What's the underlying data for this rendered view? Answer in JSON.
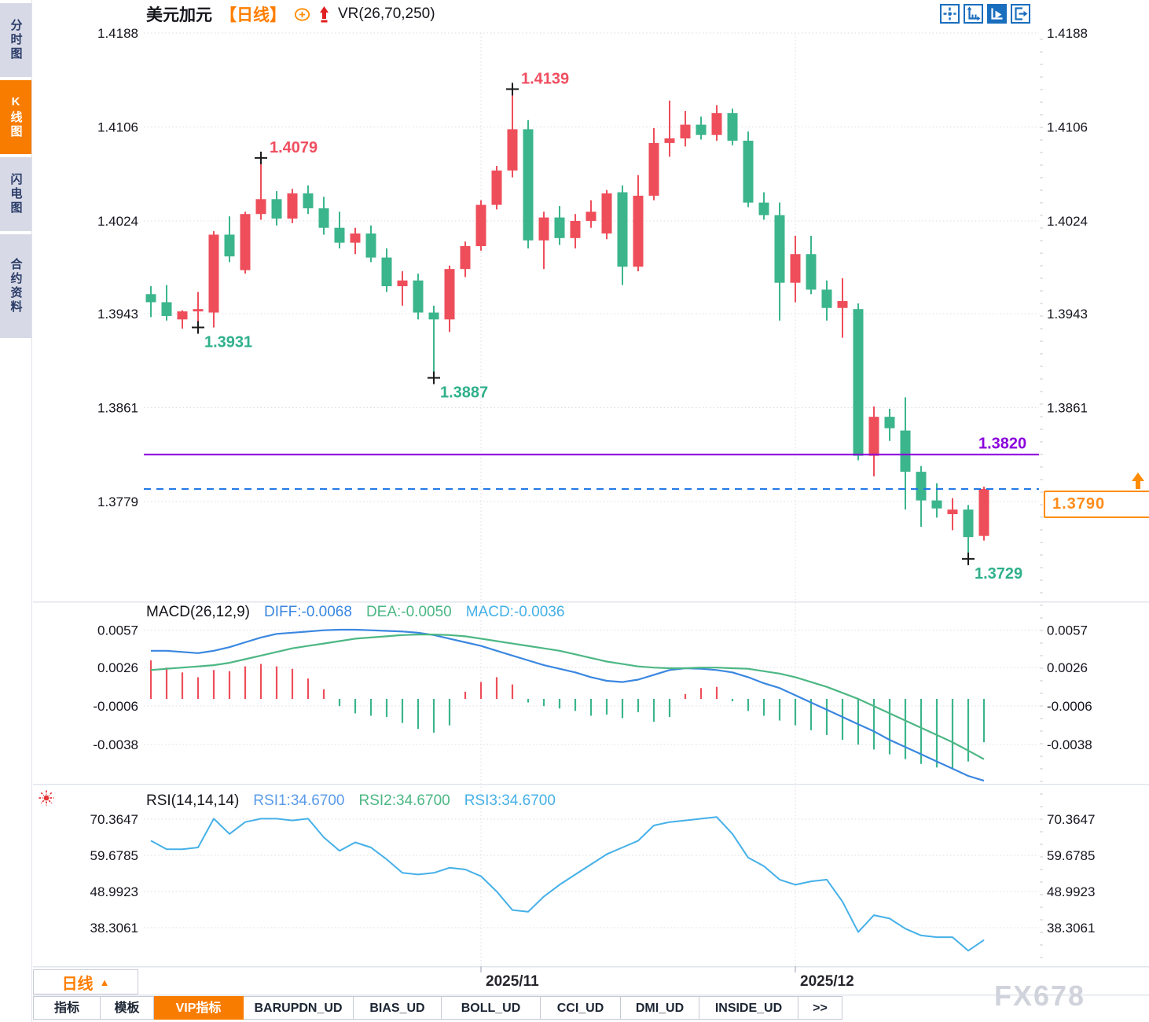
{
  "window": {
    "watermark": "FX678"
  },
  "sidebar": {
    "items": [
      {
        "label": "分时图",
        "active": false
      },
      {
        "label": "K线图",
        "active": true
      },
      {
        "label": "闪电图",
        "active": false
      },
      {
        "label": "合约资料",
        "active": false
      }
    ]
  },
  "header": {
    "symbol": "美元加元",
    "period_tag": "【日线】",
    "indicator": "VR(26,70,250)"
  },
  "toolbar": {
    "icons": [
      "crosshair-move",
      "axis-scale",
      "auto-play",
      "exit-right"
    ],
    "active_index": 2
  },
  "price_box": {
    "value": "1.3790"
  },
  "period_button": {
    "label": "日线",
    "arrow": "▲"
  },
  "bottom_tabs": [
    {
      "label": "指标",
      "active": false
    },
    {
      "label": "模板",
      "active": false
    },
    {
      "label": "VIP指标",
      "active": true
    },
    {
      "label": "BARUPDN_UD",
      "active": false
    },
    {
      "label": "BIAS_UD",
      "active": false
    },
    {
      "label": "BOLL_UD",
      "active": false
    },
    {
      "label": "CCI_UD",
      "active": false
    },
    {
      "label": "DMI_UD",
      "active": false
    },
    {
      "label": "INSIDE_UD",
      "active": false
    },
    {
      "label": ">>",
      "active": false
    }
  ],
  "macd_header": {
    "title": "MACD(26,12,9)",
    "diff_label": "DIFF:-0.0068",
    "dea_label": "DEA:-0.0050",
    "macd_label": "MACD:-0.0036"
  },
  "rsi_header": {
    "title": "RSI(14,14,14)",
    "rsi1_label": "RSI1:34.6700",
    "rsi2_label": "RSI2:34.6700",
    "rsi3_label": "RSI3:34.6700"
  },
  "colors": {
    "up": "#ee4e5a",
    "down": "#3bb58c",
    "accent_orange": "#ff7e00",
    "support_purple": "#8a00dc",
    "current_blue": "#2279e8",
    "diff_blue": "#3a87e0",
    "dea_green": "#4cb784",
    "macd_lightblue": "#45b0e8",
    "rsi_blue": "#45b0e8",
    "grid": "#dddde6",
    "axis_text": "#15151e",
    "anno_up": "#f04e60",
    "anno_down": "#2fb08b",
    "cursor": "#1b1b1b"
  },
  "chart_data": {
    "type": "candlestick",
    "symbol": "美元加元",
    "period": "日线",
    "main": {
      "y_axis": [
        {
          "label": "1.4188",
          "price": 1.4188
        },
        {
          "label": "1.4106",
          "price": 1.4106
        },
        {
          "label": "1.4024",
          "price": 1.4024
        },
        {
          "label": "1.3943",
          "price": 1.3943
        },
        {
          "label": "1.3861",
          "price": 1.3861
        },
        {
          "label": "1.3779",
          "price": 1.3779
        }
      ],
      "candles": [
        [
          1.396,
          1.3967,
          1.394,
          1.3953
        ],
        [
          1.3953,
          1.3968,
          1.3937,
          1.3941
        ],
        [
          1.3938,
          1.3946,
          1.393,
          1.3945
        ],
        [
          1.3945,
          1.3962,
          1.3931,
          1.3947
        ],
        [
          1.3944,
          1.4015,
          1.3931,
          1.4012
        ],
        [
          1.4012,
          1.4028,
          1.3988,
          1.3993
        ],
        [
          1.3981,
          1.4032,
          1.3978,
          1.403
        ],
        [
          1.403,
          1.4079,
          1.4025,
          1.4043
        ],
        [
          1.4043,
          1.405,
          1.402,
          1.4026
        ],
        [
          1.4026,
          1.4052,
          1.4022,
          1.4048
        ],
        [
          1.4048,
          1.4055,
          1.403,
          1.4035
        ],
        [
          1.4035,
          1.4045,
          1.4012,
          1.4018
        ],
        [
          1.4018,
          1.4032,
          1.4,
          1.4005
        ],
        [
          1.4005,
          1.4018,
          1.3995,
          1.4013
        ],
        [
          1.4013,
          1.402,
          1.3988,
          1.3992
        ],
        [
          1.3992,
          1.4,
          1.3962,
          1.3967
        ],
        [
          1.3967,
          1.398,
          1.395,
          1.3972
        ],
        [
          1.3972,
          1.3978,
          1.3938,
          1.3944
        ],
        [
          1.3944,
          1.395,
          1.3887,
          1.3938
        ],
        [
          1.3938,
          1.3985,
          1.3927,
          1.3982
        ],
        [
          1.3982,
          1.4006,
          1.3975,
          1.4002
        ],
        [
          1.4002,
          1.4042,
          1.3998,
          1.4038
        ],
        [
          1.4038,
          1.4072,
          1.4034,
          1.4068
        ],
        [
          1.4068,
          1.4139,
          1.4062,
          1.4104
        ],
        [
          1.4104,
          1.4112,
          1.4,
          1.4007
        ],
        [
          1.4007,
          1.4032,
          1.3982,
          1.4027
        ],
        [
          1.4027,
          1.4037,
          1.4003,
          1.4009
        ],
        [
          1.4009,
          1.403,
          1.4,
          1.4024
        ],
        [
          1.4024,
          1.4042,
          1.4018,
          1.4032
        ],
        [
          1.4013,
          1.4051,
          1.4008,
          1.4048
        ],
        [
          1.4049,
          1.4055,
          1.3968,
          1.3984
        ],
        [
          1.3984,
          1.4064,
          1.398,
          1.4046
        ],
        [
          1.4046,
          1.4105,
          1.4042,
          1.4092
        ],
        [
          1.4092,
          1.4129,
          1.408,
          1.4096
        ],
        [
          1.4096,
          1.412,
          1.4089,
          1.4108
        ],
        [
          1.4108,
          1.4115,
          1.4095,
          1.4099
        ],
        [
          1.4099,
          1.4125,
          1.4094,
          1.4118
        ],
        [
          1.4118,
          1.4122,
          1.409,
          1.4094
        ],
        [
          1.4094,
          1.4102,
          1.4036,
          1.404
        ],
        [
          1.404,
          1.4049,
          1.4025,
          1.4029
        ],
        [
          1.4029,
          1.404,
          1.3937,
          1.397
        ],
        [
          1.397,
          1.4011,
          1.3953,
          1.3995
        ],
        [
          1.3995,
          1.4011,
          1.396,
          1.3964
        ],
        [
          1.3964,
          1.3972,
          1.3937,
          1.3948
        ],
        [
          1.3948,
          1.3974,
          1.3922,
          1.3954
        ],
        [
          1.3947,
          1.3952,
          1.3815,
          1.3819
        ],
        [
          1.3819,
          1.3862,
          1.3801,
          1.3853
        ],
        [
          1.3853,
          1.386,
          1.3832,
          1.3843
        ],
        [
          1.3841,
          1.387,
          1.3772,
          1.3805
        ],
        [
          1.3805,
          1.381,
          1.3757,
          1.378
        ],
        [
          1.378,
          1.3795,
          1.3765,
          1.3773
        ],
        [
          1.3768,
          1.3782,
          1.3754,
          1.3772
        ],
        [
          1.3772,
          1.3776,
          1.3729,
          1.3748
        ],
        [
          1.3749,
          1.3792,
          1.3745,
          1.379
        ]
      ],
      "annotations": [
        {
          "text": "1.4079",
          "candle": 8,
          "price": 1.4079,
          "kind": "high"
        },
        {
          "text": "1.4139",
          "candle": 24,
          "price": 1.4139,
          "kind": "high"
        },
        {
          "text": "1.3931",
          "candle": 4,
          "price": 1.3931,
          "kind": "low"
        },
        {
          "text": "1.3887",
          "candle": 19,
          "price": 1.3887,
          "kind": "low"
        },
        {
          "text": "1.3729",
          "candle": 53,
          "price": 1.3729,
          "kind": "low"
        }
      ],
      "support_line": {
        "price": 1.382,
        "label": "1.3820"
      },
      "current_line": {
        "price": 1.379,
        "label": "1.3790"
      }
    },
    "macd": {
      "y_axis": [
        {
          "label": "0.0057",
          "value": 0.0057
        },
        {
          "label": "0.0026",
          "value": 0.0026
        },
        {
          "label": "-0.0006",
          "value": -0.0006
        },
        {
          "label": "-0.0038",
          "value": -0.0038
        }
      ],
      "diff": [
        0.004,
        0.004,
        0.0039,
        0.0038,
        0.004,
        0.0043,
        0.0047,
        0.0051,
        0.0054,
        0.0055,
        0.0056,
        0.0057,
        0.00575,
        0.00575,
        0.0057,
        0.00565,
        0.0056,
        0.0055,
        0.0053,
        0.005,
        0.0047,
        0.0044,
        0.004,
        0.0036,
        0.0032,
        0.0028,
        0.0025,
        0.0022,
        0.0018,
        0.0015,
        0.0014,
        0.0016,
        0.002,
        0.0024,
        0.00255,
        0.0025,
        0.0024,
        0.0022,
        0.0018,
        0.0013,
        0.0009,
        0.0003,
        -0.0003,
        -0.0009,
        -0.0015,
        -0.0021,
        -0.0027,
        -0.0034,
        -0.004,
        -0.0046,
        -0.0052,
        -0.0058,
        -0.0064,
        -0.0068
      ],
      "dea": [
        0.0024,
        0.0025,
        0.0026,
        0.0027,
        0.0028,
        0.003,
        0.0033,
        0.0036,
        0.0039,
        0.0042,
        0.0044,
        0.0046,
        0.0048,
        0.005,
        0.0051,
        0.0052,
        0.0053,
        0.00535,
        0.00535,
        0.0053,
        0.0052,
        0.005,
        0.0048,
        0.0046,
        0.0044,
        0.0042,
        0.004,
        0.0037,
        0.0034,
        0.0031,
        0.0029,
        0.0027,
        0.0026,
        0.00255,
        0.00255,
        0.0026,
        0.0026,
        0.00255,
        0.0025,
        0.0023,
        0.0021,
        0.0018,
        0.0014,
        0.001,
        0.0005,
        0.0,
        -0.0006,
        -0.0012,
        -0.0018,
        -0.0024,
        -0.003,
        -0.0036,
        -0.0043,
        -0.005
      ],
      "hist": [
        0.0032,
        0.0026,
        0.0022,
        0.0018,
        0.0024,
        0.0023,
        0.0027,
        0.0029,
        0.0027,
        0.0025,
        0.0017,
        0.0008,
        -0.0006,
        -0.0012,
        -0.0014,
        -0.0015,
        -0.002,
        -0.0025,
        -0.0028,
        -0.0022,
        0.0006,
        0.0014,
        0.0018,
        0.0012,
        -0.0003,
        -0.0006,
        -0.0008,
        -0.001,
        -0.0014,
        -0.0013,
        -0.0016,
        -0.0011,
        -0.0019,
        -0.0015,
        0.0004,
        0.0009,
        0.001,
        -0.0002,
        -0.001,
        -0.0014,
        -0.0018,
        -0.0022,
        -0.0026,
        -0.003,
        -0.0034,
        -0.0038,
        -0.0042,
        -0.0046,
        -0.005,
        -0.0054,
        -0.0057,
        -0.0058,
        -0.0052,
        -0.0036
      ]
    },
    "rsi": {
      "y_axis": [
        {
          "label": "70.3647",
          "value": 70.3647
        },
        {
          "label": "59.6785",
          "value": 59.6785
        },
        {
          "label": "48.9923",
          "value": 48.9923
        },
        {
          "label": "38.3061",
          "value": 38.3061
        }
      ],
      "values": [
        64,
        61.5,
        61.5,
        62,
        70.5,
        66,
        69.5,
        70.5,
        70.5,
        70,
        70.5,
        65,
        61,
        63.5,
        62,
        58.5,
        54.5,
        54,
        54.5,
        56,
        55.5,
        53.5,
        49,
        43.5,
        43,
        47.5,
        51,
        54,
        57,
        60,
        62,
        64,
        68.5,
        69.5,
        70,
        70.5,
        71,
        66,
        59,
        56.5,
        52.5,
        51,
        52,
        52.5,
        46,
        37,
        42,
        41,
        38,
        36,
        35.5,
        35.5,
        31.5,
        34.67
      ]
    },
    "x_axis": {
      "labels": [
        {
          "text": "2025/11",
          "candle": 22
        },
        {
          "text": "2025/12",
          "candle": 42
        }
      ]
    }
  }
}
